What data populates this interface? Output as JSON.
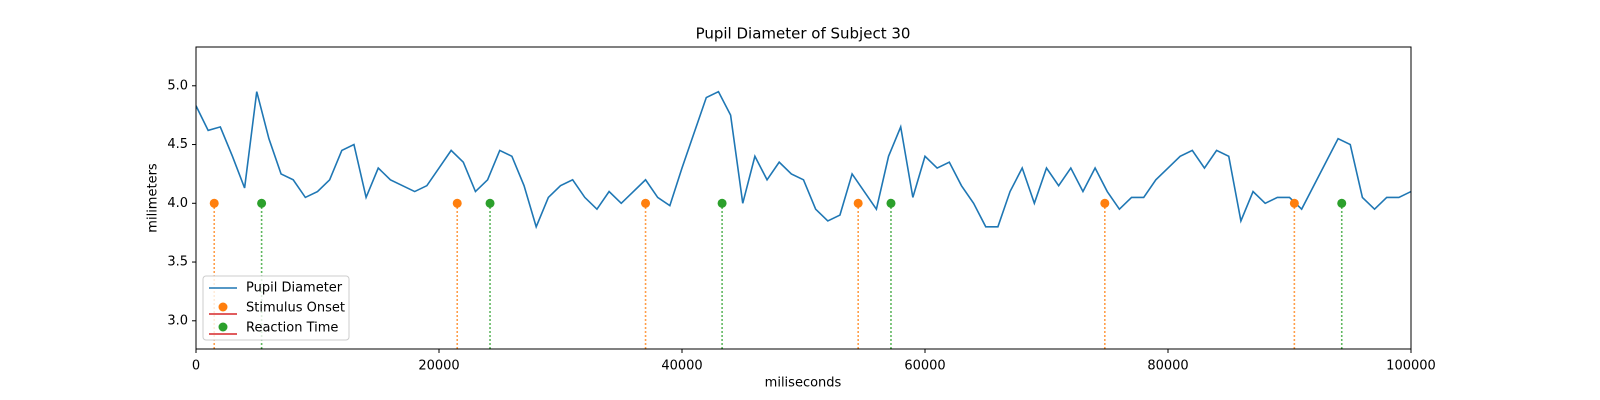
{
  "chart_data": {
    "type": "line",
    "title": "Pupil Diameter of Subject 30",
    "x_label": "miliseconds",
    "y_label": "milimeters",
    "xlim": [
      0,
      100000
    ],
    "ylim": [
      2.76,
      5.33
    ],
    "xticks": [
      0,
      20000,
      40000,
      60000,
      80000,
      100000
    ],
    "yticks": [
      {
        "value": 3,
        "label": "3.0"
      },
      3.5,
      {
        "value": 4,
        "label": "4.0"
      },
      4.5,
      {
        "value": 5,
        "label": "5.0"
      }
    ],
    "legend": "lower left",
    "series": [
      {
        "name": "Pupil Diameter",
        "type": "line",
        "color": "#1f77b4",
        "x": [
          0,
          1000,
          2000,
          3000,
          4000,
          5000,
          6000,
          7000,
          8000,
          9000,
          10000,
          11000,
          12000,
          13000,
          14000,
          15000,
          16000,
          17000,
          18000,
          19000,
          20000,
          21000,
          22000,
          23000,
          24000,
          25000,
          26000,
          27000,
          28000,
          29000,
          30000,
          31000,
          32000,
          33000,
          34000,
          35000,
          36000,
          37000,
          38000,
          39000,
          40000,
          41000,
          42000,
          43000,
          44000,
          45000,
          46000,
          47000,
          48000,
          49000,
          50000,
          51000,
          52000,
          53000,
          54000,
          55000,
          56000,
          57000,
          58000,
          59000,
          60000,
          61000,
          62000,
          63000,
          64000,
          65000,
          66000,
          67000,
          68000,
          69000,
          70000,
          71000,
          72000,
          73000,
          74000,
          75000,
          76000,
          77000,
          78000,
          79000,
          80000,
          81000,
          82000,
          83000,
          84000,
          85000,
          86000,
          87000,
          88000,
          89000,
          90000,
          91000,
          92000,
          93000,
          94000,
          95000,
          96000,
          97000,
          98000,
          99000,
          100000
        ],
        "values": [
          4.83,
          4.62,
          4.65,
          4.4,
          4.13,
          4.95,
          4.55,
          4.25,
          4.2,
          4.05,
          4.1,
          4.2,
          4.45,
          4.5,
          4.05,
          4.3,
          4.2,
          4.15,
          4.1,
          4.15,
          4.3,
          4.45,
          4.35,
          4.1,
          4.2,
          4.45,
          4.4,
          4.15,
          3.8,
          4.05,
          4.15,
          4.2,
          4.05,
          3.95,
          4.1,
          4.0,
          4.1,
          4.2,
          4.05,
          3.98,
          4.3,
          4.6,
          4.9,
          4.95,
          4.75,
          4.0,
          4.4,
          4.2,
          4.35,
          4.25,
          4.2,
          3.95,
          3.85,
          3.9,
          4.25,
          4.1,
          3.95,
          4.4,
          4.65,
          4.05,
          4.4,
          4.3,
          4.35,
          4.15,
          4.0,
          3.8,
          3.8,
          4.1,
          4.3,
          4.0,
          4.3,
          4.15,
          4.3,
          4.1,
          4.3,
          4.1,
          3.95,
          4.05,
          4.05,
          4.2,
          4.3,
          4.4,
          4.45,
          4.3,
          4.45,
          4.4,
          3.85,
          4.1,
          4.0,
          4.05,
          4.05,
          3.95,
          4.15,
          4.35,
          4.55,
          4.5,
          4.05,
          3.95,
          4.05,
          4.05,
          4.1
        ]
      },
      {
        "name": "Stimulus Onset",
        "type": "stem",
        "color": "#ff7f0e",
        "baseline_color": "#d62728",
        "x": [
          1500,
          21500,
          37000,
          54500,
          74800,
          90400
        ],
        "values": [
          4,
          4,
          4,
          4,
          4,
          4
        ]
      },
      {
        "name": "Reaction Time",
        "type": "stem",
        "color": "#2ca02c",
        "baseline_color": "#d62728",
        "x": [
          5400,
          24200,
          43300,
          57200,
          94300
        ],
        "values": [
          4,
          4,
          4,
          4,
          4
        ]
      }
    ]
  }
}
